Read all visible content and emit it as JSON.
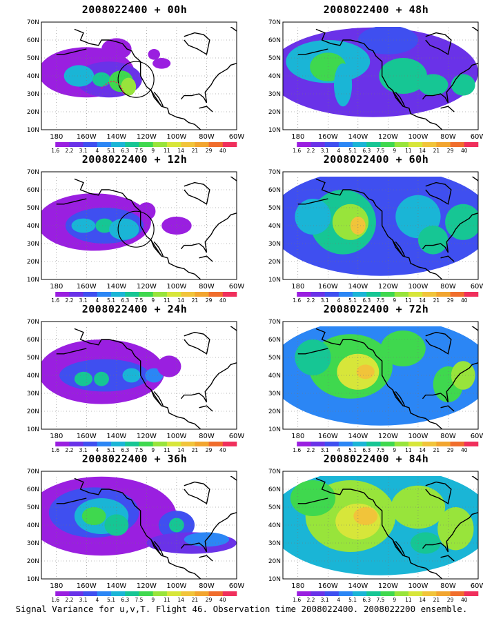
{
  "panels": [
    {
      "title": "2008022400 + 00h",
      "forecast_hour": 0
    },
    {
      "title": "2008022400 + 48h",
      "forecast_hour": 48
    },
    {
      "title": "2008022400 + 12h",
      "forecast_hour": 12
    },
    {
      "title": "2008022400 + 60h",
      "forecast_hour": 60
    },
    {
      "title": "2008022400 + 24h",
      "forecast_hour": 24
    },
    {
      "title": "2008022400 + 72h",
      "forecast_hour": 72
    },
    {
      "title": "2008022400 + 36h",
      "forecast_hour": 36
    },
    {
      "title": "2008022400 + 84h",
      "forecast_hour": 84
    }
  ],
  "lat_labels": [
    "10N",
    "20N",
    "30N",
    "40N",
    "50N",
    "60N",
    "70N"
  ],
  "lon_labels": [
    "180",
    "160W",
    "140W",
    "120W",
    "100W",
    "80W",
    "60W"
  ],
  "colorbar": {
    "labels": [
      "1.6",
      "2.2",
      "3.1",
      "4",
      "5.1",
      "6.3",
      "7.5",
      "9",
      "11",
      "14",
      "21",
      "29",
      "40"
    ],
    "colors": [
      "#ffffff",
      "#9a1fe0",
      "#6a32e8",
      "#3f4ff0",
      "#2b86f5",
      "#1ab5d6",
      "#16c694",
      "#3fd84e",
      "#98e43b",
      "#d7e63a",
      "#f1c43a",
      "#f2a52f",
      "#f06d2c",
      "#f02f5c"
    ]
  },
  "circles": [
    {
      "panel_index": 0,
      "lon": -127,
      "lat": 38
    },
    {
      "panel_index": 2,
      "lon": -127,
      "lat": 38
    }
  ],
  "footer": "Signal Variance for u,v,T. Flight 46. Observation time 2008022400. 2008022200 ensemble."
}
